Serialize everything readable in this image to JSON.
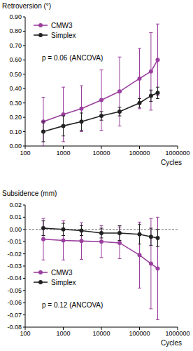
{
  "chart_data": [
    {
      "type": "line",
      "y_label": "Retroversion (°)",
      "x_label": "Cycles",
      "annotation": "p = 0.06 (ANCOVA)",
      "log": "x",
      "legend": "top-left",
      "marker": "circle",
      "x": [
        300,
        1000,
        3000,
        10000,
        30000,
        100000,
        200000,
        300000
      ],
      "xlim": [
        100,
        1000000
      ],
      "xticks": [
        100,
        1000,
        10000,
        100000,
        1000000
      ],
      "ylim": [
        0,
        0.9
      ],
      "yticks": [
        {
          "value": 0,
          "label": "0.00"
        },
        {
          "value": 0.1,
          "label": "0.10"
        },
        {
          "value": 0.2,
          "label": "0.20"
        },
        {
          "value": 0.3,
          "label": "0.30"
        },
        {
          "value": 0.4,
          "label": "0.40"
        },
        {
          "value": 0.5,
          "label": "0.50"
        },
        {
          "value": 0.6,
          "label": "0.60"
        },
        {
          "value": 0.7,
          "label": "0.70"
        },
        {
          "value": 0.8,
          "label": "0.80"
        },
        {
          "value": 0.9,
          "label": "0.90"
        }
      ],
      "series": [
        {
          "name": "CMW3",
          "color": "#9b3f9f",
          "values": [
            0.17,
            0.22,
            0.26,
            0.32,
            0.38,
            0.47,
            0.52,
            0.6
          ],
          "errors": [
            0.17,
            0.19,
            0.16,
            0.21,
            0.24,
            0.21,
            0.27,
            0.25
          ]
        },
        {
          "name": "Simplex",
          "color": "#222222",
          "values": [
            0.1,
            0.14,
            0.17,
            0.21,
            0.24,
            0.3,
            0.35,
            0.37
          ],
          "errors": [
            0.07,
            0.07,
            0.06,
            0.03,
            0.03,
            0.03,
            0.04,
            0.04
          ]
        }
      ]
    },
    {
      "type": "line",
      "y_label": "Subsidence (mm)",
      "x_label": "Cycles",
      "annotation": "p = 0.12 (ANCOVA)",
      "log": "x",
      "legend": "bottom-left",
      "marker": "circle",
      "hline": 0,
      "x": [
        300,
        1000,
        3000,
        10000,
        30000,
        100000,
        200000,
        300000
      ],
      "xlim": [
        100,
        1000000
      ],
      "xticks": [
        100,
        1000,
        10000,
        100000,
        1000000
      ],
      "ylim": [
        -0.08,
        0.02
      ],
      "yticks": [
        {
          "value": 0.02,
          "label": "0.02"
        },
        {
          "value": 0.01,
          "label": "0.01"
        },
        {
          "value": 0,
          "label": "0.00"
        },
        {
          "value": -0.01,
          "label": "-0.01"
        },
        {
          "value": -0.02,
          "label": "-0.02"
        },
        {
          "value": -0.03,
          "label": "-0.03"
        },
        {
          "value": -0.04,
          "label": "-0.04"
        },
        {
          "value": -0.05,
          "label": "-0.05"
        },
        {
          "value": -0.06,
          "label": "-0.06"
        },
        {
          "value": -0.07,
          "label": "-0.07"
        },
        {
          "value": -0.08,
          "label": "-0.08"
        }
      ],
      "series": [
        {
          "name": "CMW3",
          "color": "#9b3f9f",
          "values": [
            -0.008,
            -0.009,
            -0.0095,
            -0.01,
            -0.011,
            -0.021,
            -0.028,
            -0.032
          ],
          "errors": [
            0.017,
            0.016,
            0.015,
            0.013,
            0.013,
            0.027,
            0.037,
            0.042
          ]
        },
        {
          "name": "Simplex",
          "color": "#222222",
          "values": [
            0.001,
            0.0,
            -0.001,
            -0.003,
            -0.003,
            -0.004,
            -0.006,
            -0.007
          ],
          "errors": [
            0.006,
            0.005,
            0.004,
            0.004,
            0.006,
            0.008,
            0.007,
            0.007
          ]
        }
      ]
    }
  ]
}
